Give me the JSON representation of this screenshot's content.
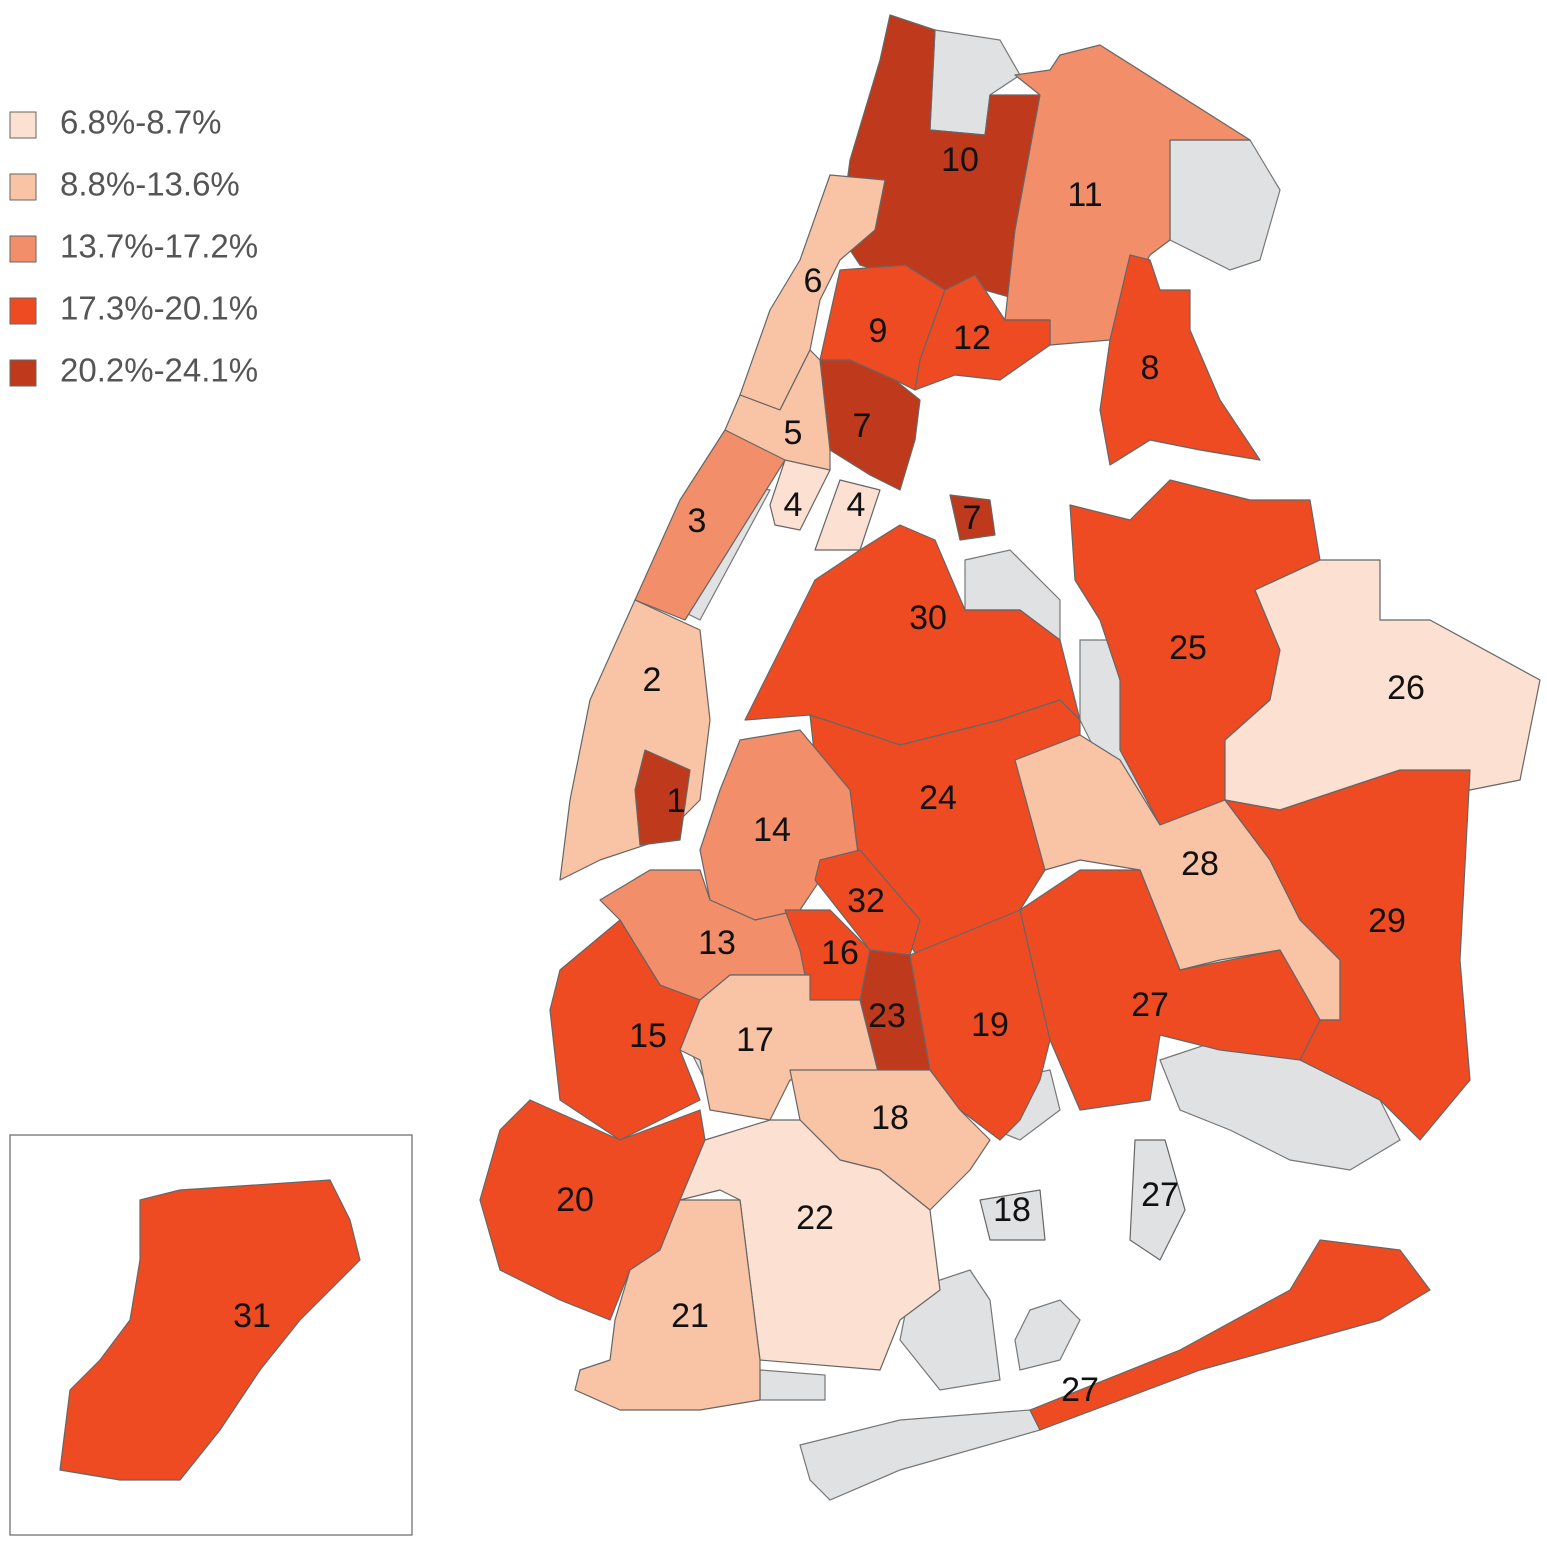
{
  "legend": [
    {
      "label": "6.8%-8.7%",
      "color": "#fce0d2"
    },
    {
      "label": "8.8%-13.6%",
      "color": "#f9c3a5"
    },
    {
      "label": "13.7%-17.2%",
      "color": "#f28f6a"
    },
    {
      "label": "17.3%-20.1%",
      "color": "#ef4b23"
    },
    {
      "label": "20.2%-24.1%",
      "color": "#bf3a1c"
    }
  ],
  "districts": [
    {
      "label": "10",
      "color": "#bf3a1c"
    },
    {
      "label": "11",
      "color": "#f28f6a"
    },
    {
      "label": "6",
      "color": "#f9c3a5"
    },
    {
      "label": "9",
      "color": "#ef4b23"
    },
    {
      "label": "12",
      "color": "#ef4b23"
    },
    {
      "label": "8",
      "color": "#ef4b23"
    },
    {
      "label": "7",
      "color": "#bf3a1c"
    },
    {
      "label": "5",
      "color": "#f9c3a5"
    },
    {
      "label": "3",
      "color": "#f28f6a"
    },
    {
      "label": "4",
      "color": "#fce0d2"
    },
    {
      "label": "4",
      "color": "#fce0d2"
    },
    {
      "label": "7",
      "color": "#bf3a1c"
    },
    {
      "label": "30",
      "color": "#ef4b23"
    },
    {
      "label": "25",
      "color": "#ef4b23"
    },
    {
      "label": "26",
      "color": "#fce0d2"
    },
    {
      "label": "2",
      "color": "#f9c3a5"
    },
    {
      "label": "1",
      "color": "#bf3a1c"
    },
    {
      "label": "24",
      "color": "#ef4b23"
    },
    {
      "label": "14",
      "color": "#f28f6a"
    },
    {
      "label": "32",
      "color": "#ef4b23"
    },
    {
      "label": "28",
      "color": "#f9c3a5"
    },
    {
      "label": "29",
      "color": "#ef4b23"
    },
    {
      "label": "13",
      "color": "#f28f6a"
    },
    {
      "label": "16",
      "color": "#ef4b23"
    },
    {
      "label": "23",
      "color": "#bf3a1c"
    },
    {
      "label": "19",
      "color": "#ef4b23"
    },
    {
      "label": "27",
      "color": "#ef4b23"
    },
    {
      "label": "15",
      "color": "#ef4b23"
    },
    {
      "label": "17",
      "color": "#f9c3a5"
    },
    {
      "label": "18",
      "color": "#f9c3a5"
    },
    {
      "label": "20",
      "color": "#ef4b23"
    },
    {
      "label": "22",
      "color": "#fce0d2"
    },
    {
      "label": "21",
      "color": "#f9c3a5"
    },
    {
      "label": "18",
      "color": "#e0e1e3"
    },
    {
      "label": "27",
      "color": "#e0e1e3"
    },
    {
      "label": "27",
      "color": "#ef4b23"
    },
    {
      "label": "31",
      "color": "#ef4b23"
    }
  ]
}
